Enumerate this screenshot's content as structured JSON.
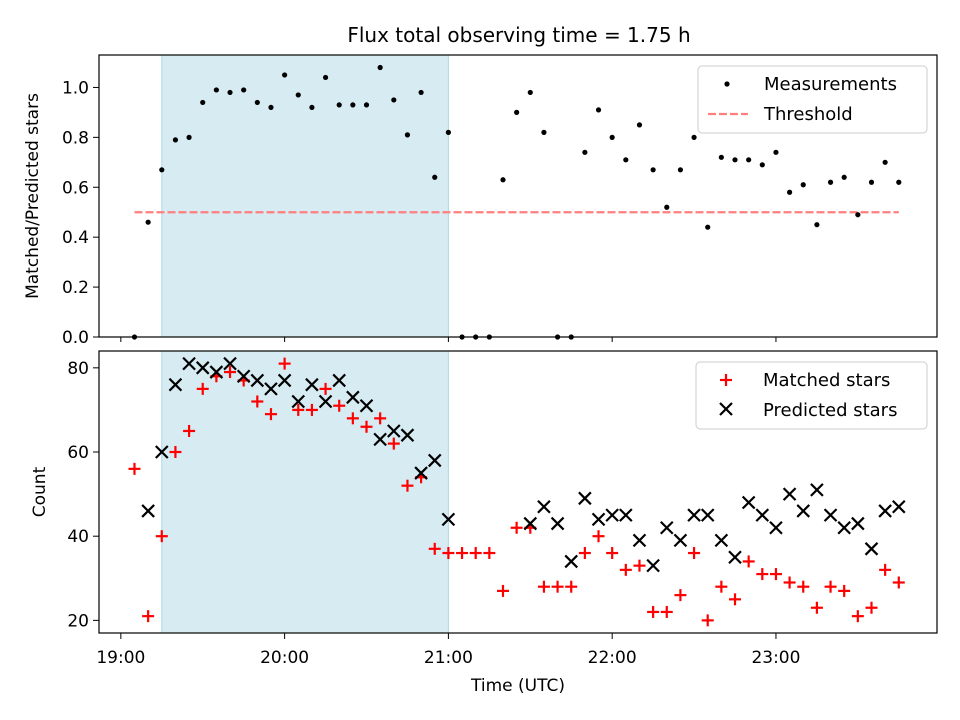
{
  "title": "Flux total observing time = 1.75 h",
  "chart_data": [
    {
      "type": "scatter",
      "ylabel": "Matched/Predicted stars",
      "xlim": [
        "18:52",
        "23:59"
      ],
      "ylim": [
        0,
        1.13
      ],
      "yticks": [
        0.0,
        0.2,
        0.4,
        0.6,
        0.8,
        1.0
      ],
      "ytick_labels": [
        "0.0",
        "0.2",
        "0.4",
        "0.6",
        "0.8",
        "1.0"
      ],
      "shaded_interval": [
        "19:15",
        "21:00"
      ],
      "shaded_color": "#add8e6",
      "legend_position": "top-right",
      "series": [
        {
          "name": "Measurements",
          "marker": "dot",
          "color": "#000000",
          "x": [
            "19:05",
            "19:10",
            "19:15",
            "19:20",
            "19:25",
            "19:30",
            "19:35",
            "19:40",
            "19:45",
            "19:50",
            "19:55",
            "20:00",
            "20:05",
            "20:10",
            "20:15",
            "20:20",
            "20:25",
            "20:30",
            "20:35",
            "20:40",
            "20:45",
            "20:50",
            "20:55",
            "21:00",
            "21:05",
            "21:10",
            "21:15",
            "21:20",
            "21:25",
            "21:30",
            "21:35",
            "21:40",
            "21:45",
            "21:50",
            "21:55",
            "22:00",
            "22:05",
            "22:10",
            "22:15",
            "22:20",
            "22:25",
            "22:30",
            "22:35",
            "22:40",
            "22:45",
            "22:50",
            "22:55",
            "23:00",
            "23:05",
            "23:10",
            "23:15",
            "23:20",
            "23:25",
            "23:30",
            "23:35",
            "23:40",
            "23:45"
          ],
          "y": [
            0.0,
            0.46,
            0.67,
            0.79,
            0.8,
            0.94,
            0.99,
            0.98,
            0.99,
            0.94,
            0.92,
            1.05,
            0.97,
            0.92,
            1.04,
            0.93,
            0.93,
            0.93,
            1.08,
            0.95,
            0.81,
            0.98,
            0.64,
            0.82,
            0.0,
            0.0,
            0.0,
            0.63,
            0.9,
            0.98,
            0.82,
            0.0,
            0.0,
            0.74,
            0.91,
            0.8,
            0.71,
            0.85,
            0.67,
            0.52,
            0.67,
            0.8,
            0.44,
            0.72,
            0.71,
            0.71,
            0.69,
            0.74,
            0.58,
            0.61,
            0.45,
            0.62,
            0.64,
            0.49,
            0.62,
            0.7,
            0.62
          ]
        },
        {
          "name": "Threshold",
          "marker": "dashed-line",
          "color": "#ff7f7f",
          "x": [
            "19:05",
            "23:45"
          ],
          "y": [
            0.5,
            0.5
          ]
        }
      ]
    },
    {
      "type": "scatter",
      "xlabel": "Time (UTC)",
      "ylabel": "Count",
      "xlim": [
        "18:52",
        "23:59"
      ],
      "ylim": [
        17,
        84
      ],
      "xticks": [
        "19:00",
        "20:00",
        "21:00",
        "22:00",
        "23:00"
      ],
      "yticks": [
        20,
        40,
        60,
        80
      ],
      "ytick_labels": [
        "20",
        "40",
        "60",
        "80"
      ],
      "shaded_interval": [
        "19:15",
        "21:00"
      ],
      "shaded_color": "#add8e6",
      "legend_position": "top-right",
      "series": [
        {
          "name": "Matched stars",
          "marker": "plus",
          "color": "#ff0000",
          "x": [
            "19:05",
            "19:10",
            "19:15",
            "19:20",
            "19:25",
            "19:30",
            "19:35",
            "19:40",
            "19:45",
            "19:50",
            "19:55",
            "20:00",
            "20:05",
            "20:10",
            "20:15",
            "20:20",
            "20:25",
            "20:30",
            "20:35",
            "20:40",
            "20:45",
            "20:50",
            "20:55",
            "21:00",
            "21:05",
            "21:10",
            "21:15",
            "21:20",
            "21:25",
            "21:30",
            "21:35",
            "21:40",
            "21:45",
            "21:50",
            "21:55",
            "22:00",
            "22:05",
            "22:10",
            "22:15",
            "22:20",
            "22:25",
            "22:30",
            "22:35",
            "22:40",
            "22:45",
            "22:50",
            "22:55",
            "23:00",
            "23:05",
            "23:10",
            "23:15",
            "23:20",
            "23:25",
            "23:30",
            "23:35",
            "23:40",
            "23:45"
          ],
          "y": [
            56,
            21,
            40,
            60,
            65,
            75,
            78,
            79,
            77,
            72,
            69,
            81,
            70,
            70,
            75,
            71,
            68,
            66,
            68,
            62,
            52,
            54,
            37,
            36,
            36,
            36,
            36,
            27,
            42,
            42,
            28,
            28,
            28,
            36,
            40,
            36,
            32,
            33,
            22,
            22,
            26,
            36,
            20,
            28,
            25,
            34,
            31,
            31,
            29,
            28,
            23,
            28,
            27,
            21,
            23,
            32,
            29
          ]
        },
        {
          "name": "Predicted stars",
          "marker": "x",
          "color": "#000000",
          "x": [
            "19:10",
            "19:15",
            "19:20",
            "19:25",
            "19:30",
            "19:35",
            "19:40",
            "19:45",
            "19:50",
            "19:55",
            "20:00",
            "20:05",
            "20:10",
            "20:15",
            "20:20",
            "20:25",
            "20:30",
            "20:35",
            "20:40",
            "20:45",
            "20:50",
            "20:55",
            "21:00",
            "21:30",
            "21:35",
            "21:40",
            "21:45",
            "21:55",
            "22:00",
            "22:05",
            "22:10",
            "22:15",
            "22:20",
            "22:25",
            "22:30",
            "22:35",
            "22:40",
            "22:45",
            "22:50",
            "22:55",
            "23:00",
            "23:05",
            "23:10",
            "23:15",
            "23:20",
            "23:25",
            "23:30",
            "23:35",
            "23:40",
            "23:45",
            "21:50"
          ],
          "y": [
            46,
            60,
            76,
            81,
            80,
            79,
            81,
            78,
            77,
            75,
            77,
            72,
            76,
            72,
            77,
            73,
            71,
            63,
            65,
            64,
            55,
            58,
            44,
            43,
            47,
            43,
            34,
            44,
            45,
            45,
            39,
            33,
            42,
            39,
            45,
            45,
            39,
            35,
            48,
            45,
            42,
            50,
            46,
            51,
            45,
            42,
            43,
            37,
            46,
            47,
            49
          ]
        }
      ]
    }
  ]
}
